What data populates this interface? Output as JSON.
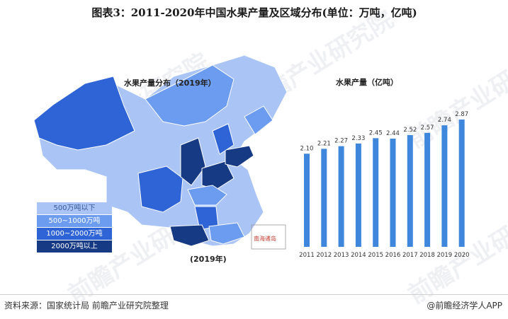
{
  "title": "图表3：2011-2020年中国水果产量及区域分布(单位：万吨，亿吨)",
  "source": "资料来源：国家统计局 前瞻产业研究院整理",
  "brand": "@前瞻经济学人APP",
  "watermark": "前瞻产业研究院",
  "map": {
    "title": "水果产量分布（2019年）",
    "year_label": "(2019年)",
    "nanhai_label": "南海诸岛",
    "legend": [
      {
        "label": "500万吨以下",
        "color": "#a9c4f5",
        "text_color": "#3a5a9a"
      },
      {
        "label": "500~1000万吨",
        "color": "#6c9cf0",
        "text_color": "#ffffff"
      },
      {
        "label": "1000~2000万吨",
        "color": "#2f64d6",
        "text_color": "#ffffff"
      },
      {
        "label": "2000万吨以上",
        "color": "#173a85",
        "text_color": "#ffffff"
      }
    ]
  },
  "chart_data": {
    "type": "bar",
    "title": "水果产量（亿吨）",
    "categories": [
      "2011",
      "2012",
      "2013",
      "2014",
      "2015",
      "2016",
      "2017",
      "2018",
      "2019",
      "2020"
    ],
    "values": [
      2.1,
      2.21,
      2.27,
      2.33,
      2.45,
      2.44,
      2.52,
      2.57,
      2.74,
      2.87
    ],
    "value_labels": [
      "2.10",
      "2.21",
      "2.27",
      "2.33",
      "2.45",
      "2.44",
      "2.52",
      "2.57",
      "2.74",
      "2.87"
    ],
    "bar_color": "#3f86dd",
    "grid": false
  }
}
